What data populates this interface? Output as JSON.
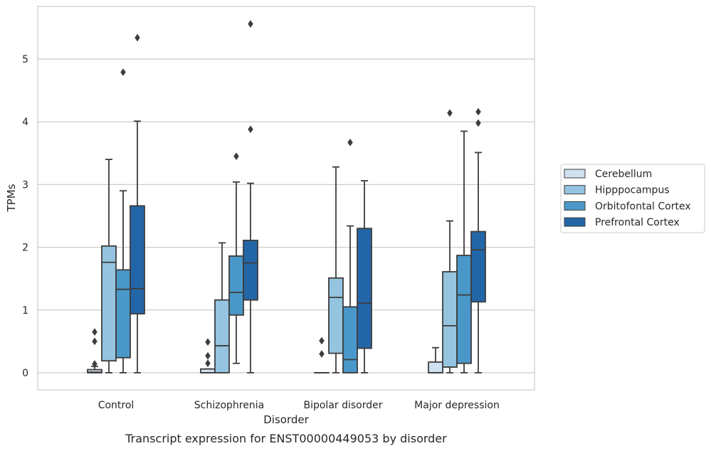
{
  "chart_data": {
    "type": "box",
    "xlabel": "Disorder",
    "ylabel": "TPMs",
    "caption": "Transcript expression for ENST00000449053 by disorder",
    "ylim": [
      -0.27,
      5.85
    ],
    "yticks": [
      0,
      1,
      2,
      3,
      4,
      5
    ],
    "grid": "horizontal",
    "legend_position": "right",
    "categories": [
      "Control",
      "Schizophrenia",
      "Bipolar disorder",
      "Major depression"
    ],
    "series": [
      {
        "name": "Cerebellum",
        "color": "#d0e1f2",
        "boxes": [
          {
            "whislo": 0,
            "q1": 0,
            "med": 0.01,
            "q3": 0.05,
            "whishi": 0.1,
            "fliers": [
              0.14,
              0.5,
              0.65
            ]
          },
          {
            "whislo": 0,
            "q1": 0,
            "med": 0.0,
            "q3": 0.06,
            "whishi": 0.06,
            "fliers": [
              0.15,
              0.27,
              0.49
            ]
          },
          {
            "whislo": 0,
            "q1": 0,
            "med": 0,
            "q3": 0,
            "whishi": 0,
            "fliers": [
              0.3,
              0.51
            ]
          },
          {
            "whislo": 0,
            "q1": 0,
            "med": 0.0,
            "q3": 0.17,
            "whishi": 0.4,
            "fliers": []
          }
        ]
      },
      {
        "name": "Hipppocampus",
        "color": "#94c4df",
        "boxes": [
          {
            "whislo": 0,
            "q1": 0.19,
            "med": 1.76,
            "q3": 2.02,
            "whishi": 3.4,
            "fliers": []
          },
          {
            "whislo": 0,
            "q1": 0,
            "med": 0.43,
            "q3": 1.16,
            "whishi": 2.07,
            "fliers": []
          },
          {
            "whislo": 0,
            "q1": 0.31,
            "med": 1.2,
            "q3": 1.51,
            "whishi": 3.28,
            "fliers": []
          },
          {
            "whislo": 0,
            "q1": 0.09,
            "med": 0.75,
            "q3": 1.61,
            "whishi": 2.42,
            "fliers": [
              4.14
            ]
          }
        ]
      },
      {
        "name": "Orbitofontal Cortex",
        "color": "#4a98c9",
        "boxes": [
          {
            "whislo": 0,
            "q1": 0.24,
            "med": 1.33,
            "q3": 1.64,
            "whishi": 2.9,
            "fliers": [
              4.79
            ]
          },
          {
            "whislo": 0.15,
            "q1": 0.92,
            "med": 1.28,
            "q3": 1.86,
            "whishi": 3.04,
            "fliers": [
              3.45
            ]
          },
          {
            "whislo": 0,
            "q1": 0,
            "med": 0.21,
            "q3": 1.05,
            "whishi": 2.34,
            "fliers": [
              3.67
            ]
          },
          {
            "whislo": 0,
            "q1": 0.15,
            "med": 1.24,
            "q3": 1.87,
            "whishi": 3.85,
            "fliers": []
          }
        ]
      },
      {
        "name": "Prefrontal Cortex",
        "color": "#2366a8",
        "boxes": [
          {
            "whislo": 0,
            "q1": 0.94,
            "med": 1.34,
            "q3": 2.66,
            "whishi": 4.01,
            "fliers": [
              5.34
            ]
          },
          {
            "whislo": 0,
            "q1": 1.16,
            "med": 1.75,
            "q3": 2.11,
            "whishi": 3.02,
            "fliers": [
              3.88,
              5.56
            ]
          },
          {
            "whislo": 0,
            "q1": 0.39,
            "med": 1.11,
            "q3": 2.3,
            "whishi": 3.06,
            "fliers": []
          },
          {
            "whislo": 0,
            "q1": 1.13,
            "med": 1.96,
            "q3": 2.25,
            "whishi": 3.51,
            "fliers": [
              3.98,
              4.16
            ]
          }
        ]
      }
    ]
  }
}
